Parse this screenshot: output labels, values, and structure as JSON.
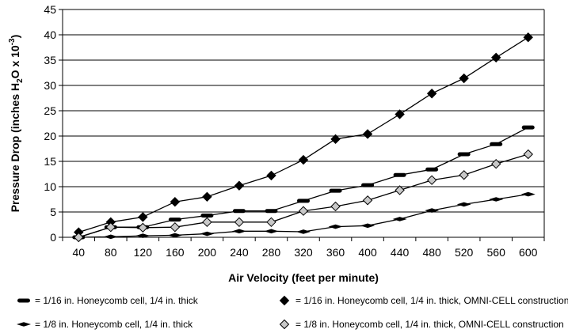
{
  "chart_data": {
    "type": "line",
    "title": "",
    "xlabel": "Air Velocity (feet per minute)",
    "ylabel_parts": [
      "Pressure Drop (inches H",
      "2",
      "O x 10",
      "-3",
      ")"
    ],
    "x": [
      40,
      80,
      120,
      160,
      200,
      240,
      280,
      320,
      360,
      400,
      440,
      480,
      520,
      560,
      600
    ],
    "ylim": [
      0,
      45
    ],
    "yticks": [
      0,
      5,
      10,
      15,
      20,
      25,
      30,
      35,
      40,
      45
    ],
    "grid": "horizontal",
    "legend_position": "bottom",
    "series": [
      {
        "name": "= 1/16 in. Honeycomb cell, 1/4 in. thick",
        "marker": "dash",
        "fill": "#000000",
        "values": [
          0,
          2,
          2,
          3.5,
          4.3,
          5.2,
          5.2,
          7.2,
          9.2,
          10.3,
          12.3,
          13.4,
          16.4,
          18.4,
          21.7
        ]
      },
      {
        "name": "= 1/16 in. Honeycomb cell, 1/4 in. thick, OMNI-CELL construction",
        "marker": "diamond",
        "fill": "#000000",
        "values": [
          1,
          3,
          4,
          7,
          8,
          10.2,
          12.2,
          15.3,
          19.4,
          20.4,
          24.3,
          28.4,
          31.4,
          35.5,
          39.5
        ]
      },
      {
        "name": "= 1/8 in. Honeycomb cell, 1/4 in. thick",
        "marker": "flat-diamond",
        "fill": "#000000",
        "values": [
          0,
          0.1,
          0.3,
          0.4,
          0.7,
          1.2,
          1.2,
          1.1,
          2.1,
          2.3,
          3.6,
          5.3,
          6.5,
          7.5,
          8.5
        ]
      },
      {
        "name": "= 1/8 in. Honeycomb cell, 1/4 in. thick, OMNI-CELL construction",
        "marker": "diamond",
        "fill": "#c8c8c8",
        "values": [
          0,
          2,
          1.9,
          2,
          3,
          3,
          3,
          5.2,
          6.1,
          7.3,
          9.3,
          11.3,
          12.3,
          14.5,
          16.4
        ]
      }
    ]
  }
}
